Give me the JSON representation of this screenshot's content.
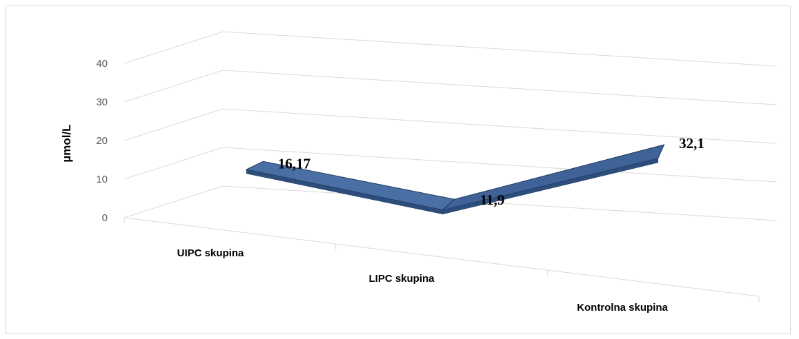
{
  "chart_data": {
    "type": "line",
    "style": "3d-ribbon",
    "categories": [
      "UIPC skupina",
      "LIPC skupina",
      "Kontrolna skupina"
    ],
    "series": [
      {
        "values": [
          16.17,
          11.9,
          32.1
        ],
        "labels": [
          "16,17",
          "11,9",
          "32,1"
        ]
      }
    ],
    "ylabel": "µmol/L",
    "ylim": [
      0,
      40
    ],
    "yticks": [
      "0",
      "10",
      "20",
      "30",
      "40"
    ],
    "grid": true,
    "legend": "none",
    "colors": {
      "ribbon_top": "#4a6fa5",
      "ribbon_front": "#2d4e7c",
      "ribbon_edge": "#1f3a5f",
      "grid": "#d9d9d9"
    }
  }
}
